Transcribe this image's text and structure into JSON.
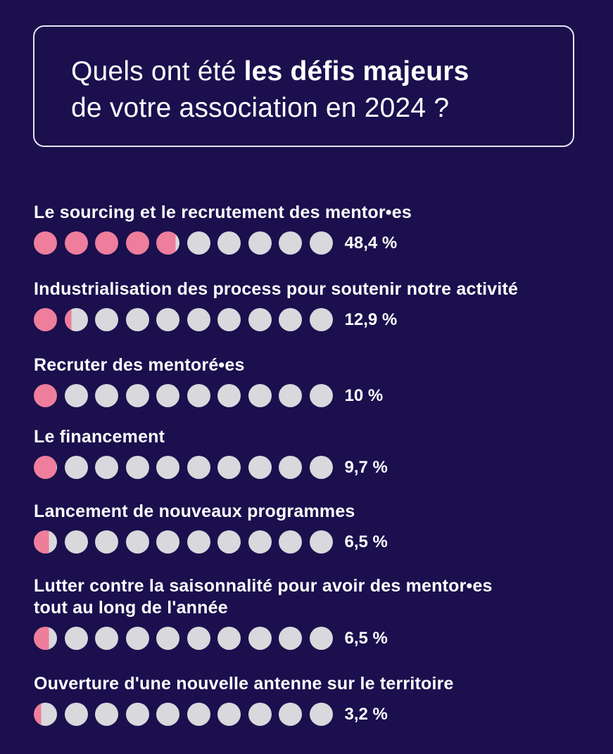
{
  "title": {
    "part1": "Quels ont été ",
    "bold": "les défis majeurs",
    "line2": "de votre association en 2024 ?"
  },
  "colors": {
    "background": "#1b0f4e",
    "filled": "#ee7e9c",
    "empty": "#d9d8dc"
  },
  "chart_data": {
    "type": "bar",
    "encoding": "10-dot pictogram, each dot = 10 %",
    "categories": [
      "Le sourcing et le recrutement des mentor•es",
      "Industrialisation des process pour soutenir notre activité",
      "Recruter des mentoré•es",
      "Le financement",
      "Lancement de nouveaux programmes",
      "Lutter contre la saisonnalité pour avoir des mentor•es tout au long de l'année",
      "Ouverture d'une nouvelle antenne sur le territoire"
    ],
    "values": [
      48.4,
      12.9,
      10,
      9.7,
      6.5,
      6.5,
      3.2
    ],
    "value_labels": [
      "48,4 %",
      "12,9 %",
      "10 %",
      "9,7 %",
      "6,5 %",
      "6,5 %",
      "3,2 %"
    ],
    "items": [
      {
        "label_lines": [
          "Le sourcing et le recrutement des mentor•es"
        ]
      },
      {
        "label_lines": [
          "Industrialisation des process pour soutenir notre activité"
        ]
      },
      {
        "label_lines": [
          "Recruter des mentoré•es"
        ]
      },
      {
        "label_lines": [
          "Le financement"
        ]
      },
      {
        "label_lines": [
          "Lancement de nouveaux programmes"
        ]
      },
      {
        "label_lines": [
          "Lutter contre la saisonnalité pour avoir des mentor•es",
          "tout au long de l'année"
        ]
      },
      {
        "label_lines": [
          "Ouverture d'une nouvelle antenne sur le territoire"
        ]
      }
    ]
  }
}
